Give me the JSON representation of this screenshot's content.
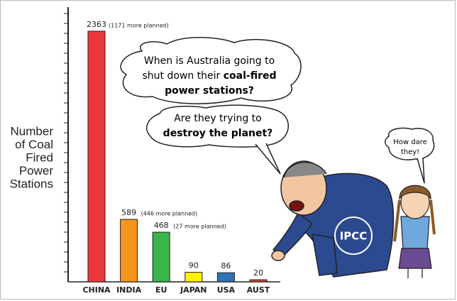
{
  "chart_data": {
    "type": "bar",
    "y_label_lines": [
      "Number",
      "of Coal",
      "Fired",
      "Power",
      "Stations"
    ],
    "categories": [
      "CHINA",
      "INDIA",
      "EU",
      "JAPAN",
      "USA",
      "AUST"
    ],
    "values": [
      2363,
      589,
      468,
      90,
      86,
      20
    ],
    "notes": [
      "(1171 more planned)",
      "(446 more planned)",
      "(27 more planned)",
      null,
      null,
      null
    ],
    "colors": [
      "#e8383d",
      "#f7941d",
      "#3ab54a",
      "#fff200",
      "#2e74b5",
      "#c1502e"
    ],
    "ylim": [
      0,
      2590
    ]
  },
  "cartoon": {
    "bubble_1": {
      "line_1": "When is Australia going to",
      "line_2": "shut down their",
      "line_2_bold": "coal-fired",
      "line_3_bold": "power stations?"
    },
    "bubble_2": {
      "line_1": "Are they trying to",
      "line_2_bold": "destroy the planet?"
    },
    "bubble_3": {
      "line_1": "How dare",
      "line_2": "they!"
    },
    "badge": "IPCC"
  }
}
